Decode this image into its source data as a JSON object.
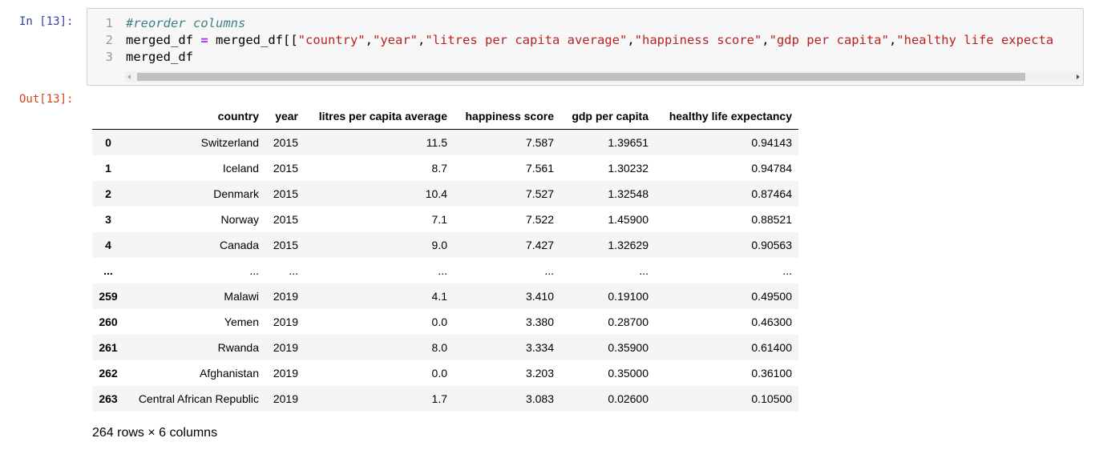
{
  "input_prompt": "In [13]:",
  "output_prompt": "Out[13]:",
  "code": {
    "lines": [
      {
        "number": "1",
        "tokens": [
          {
            "text": "#reorder columns",
            "color": "#408080"
          }
        ]
      },
      {
        "number": "2",
        "tokens": [
          {
            "text": "merged_df ",
            "color": "#000000"
          },
          {
            "text": "=",
            "color": "#AA22FF"
          },
          {
            "text": " merged_df[[",
            "color": "#000000"
          },
          {
            "text": "\"country\"",
            "color": "#BA2121"
          },
          {
            "text": ",",
            "color": "#000000"
          },
          {
            "text": "\"year\"",
            "color": "#BA2121"
          },
          {
            "text": ",",
            "color": "#000000"
          },
          {
            "text": "\"litres per capita average\"",
            "color": "#BA2121"
          },
          {
            "text": ",",
            "color": "#000000"
          },
          {
            "text": "\"happiness score\"",
            "color": "#BA2121"
          },
          {
            "text": ",",
            "color": "#000000"
          },
          {
            "text": "\"gdp per capita\"",
            "color": "#BA2121"
          },
          {
            "text": ",",
            "color": "#000000"
          },
          {
            "text": "\"healthy life expecta",
            "color": "#BA2121"
          }
        ]
      },
      {
        "number": "3",
        "tokens": [
          {
            "text": "merged_df",
            "color": "#000000"
          }
        ]
      }
    ]
  },
  "table": {
    "columns": [
      "country",
      "year",
      "litres per capita average",
      "happiness score",
      "gdp per capita",
      "healthy life expectancy"
    ],
    "rows": [
      [
        "0",
        "Switzerland",
        "2015",
        "11.5",
        "7.587",
        "1.39651",
        "0.94143"
      ],
      [
        "1",
        "Iceland",
        "2015",
        "8.7",
        "7.561",
        "1.30232",
        "0.94784"
      ],
      [
        "2",
        "Denmark",
        "2015",
        "10.4",
        "7.527",
        "1.32548",
        "0.87464"
      ],
      [
        "3",
        "Norway",
        "2015",
        "7.1",
        "7.522",
        "1.45900",
        "0.88521"
      ],
      [
        "4",
        "Canada",
        "2015",
        "9.0",
        "7.427",
        "1.32629",
        "0.90563"
      ],
      [
        "...",
        "...",
        "...",
        "...",
        "...",
        "...",
        "..."
      ],
      [
        "259",
        "Malawi",
        "2019",
        "4.1",
        "3.410",
        "0.19100",
        "0.49500"
      ],
      [
        "260",
        "Yemen",
        "2019",
        "0.0",
        "3.380",
        "0.28700",
        "0.46300"
      ],
      [
        "261",
        "Rwanda",
        "2019",
        "8.0",
        "3.334",
        "0.35900",
        "0.61400"
      ],
      [
        "262",
        "Afghanistan",
        "2019",
        "0.0",
        "3.203",
        "0.35000",
        "0.36100"
      ],
      [
        "263",
        "Central African Republic",
        "2019",
        "1.7",
        "3.083",
        "0.02600",
        "0.10500"
      ]
    ]
  },
  "footer": "264 rows × 6 columns"
}
